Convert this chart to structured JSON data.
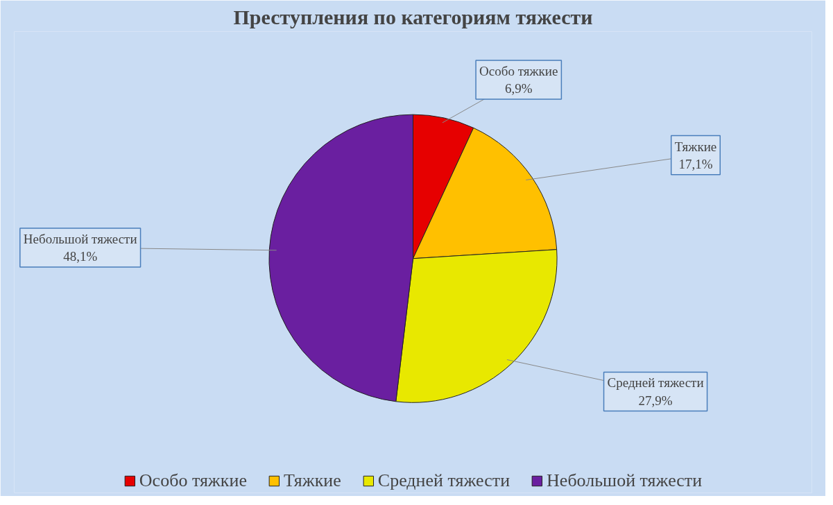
{
  "chart_data": {
    "type": "pie",
    "title": "Преступления по категориям тяжести",
    "categories": [
      "Особо тяжкие",
      "Тяжкие",
      "Средней тяжести",
      "Небольшой тяжести"
    ],
    "values": [
      6.9,
      17.1,
      27.9,
      48.1
    ],
    "colors": [
      "#e60000",
      "#ffc000",
      "#e8e800",
      "#6a1fa0"
    ],
    "value_labels": [
      "6,9%",
      "17,1%",
      "27,9%",
      "48,1%"
    ],
    "legend": "bottom"
  }
}
